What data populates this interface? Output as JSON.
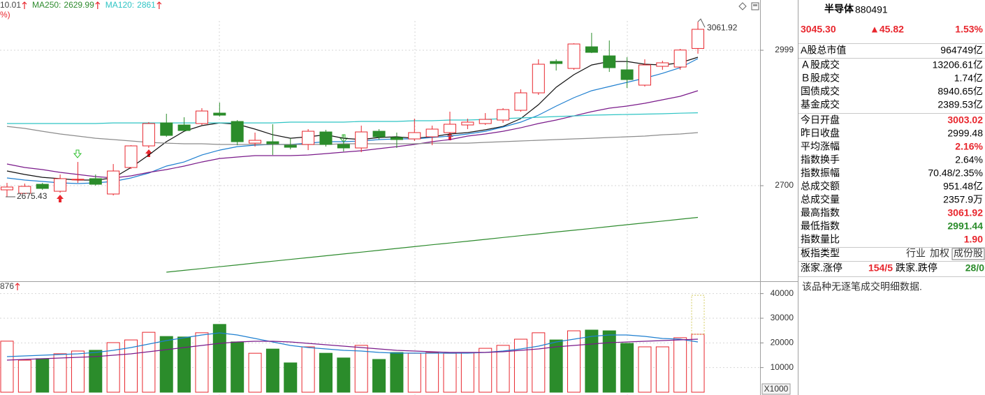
{
  "chart_data": [
    {
      "type": "candlestick",
      "header_text": "10.01",
      "sub_text": "%)",
      "up_color": "#e8262d",
      "down_color": "#2b8c2b",
      "open": [
        2690.8,
        2683.1,
        2703.1,
        2687.7,
        2713.9,
        2715.5,
        2681.6,
        2740.1,
        2787.9,
        2838.7,
        2834.1,
        2837.2,
        2860.3,
        2841.8,
        2794.0,
        2797.1,
        2789.4,
        2791.0,
        2818.7,
        2791.0,
        2783.3,
        2820.2,
        2806.4,
        2803.3,
        2807.9,
        2817.2,
        2834.1,
        2837.2,
        2844.9,
        2866.5,
        2905.0,
        2974.3,
        2958.9,
        3006.7,
        2986.7,
        2955.9,
        2922.0,
        2963.6,
        2962.0,
        3003.02
      ],
      "close": [
        2697.0,
        2698.5,
        2693.9,
        2715.5,
        2714.2,
        2703.1,
        2732.4,
        2787.9,
        2837.2,
        2811.0,
        2821.8,
        2864.9,
        2855.7,
        2797.1,
        2800.2,
        2792.5,
        2784.8,
        2820.2,
        2791.0,
        2783.3,
        2818.7,
        2807.9,
        2801.8,
        2817.2,
        2824.9,
        2835.7,
        2840.3,
        2846.4,
        2868.0,
        2905.0,
        2968.2,
        2969.7,
        3012.9,
        2994.4,
        2960.5,
        2934.3,
        2966.6,
        2971.3,
        2999.48,
        3045.3
      ],
      "high": [
        2706.2,
        2704.7,
        2706.2,
        2724.7,
        2752.4,
        2724.7,
        2747.8,
        2789.4,
        2840.3,
        2858.8,
        2851.1,
        2871.1,
        2883.4,
        2844.9,
        2817.2,
        2835.7,
        2804.8,
        2824.9,
        2823.3,
        2812.5,
        2832.6,
        2824.9,
        2817.2,
        2848.0,
        2832.6,
        2863.4,
        2848.0,
        2860.3,
        2871.1,
        2912.7,
        2979.0,
        2979.0,
        3014.4,
        3037.5,
        3020.6,
        2983.6,
        2979.0,
        2975.9,
        3002.1,
        3061.92
      ],
      "low": [
        2675.43,
        2681.5,
        2690.8,
        2684.6,
        2706.2,
        2700.1,
        2678.5,
        2737.0,
        2783.3,
        2807.9,
        2820.2,
        2834.1,
        2852.6,
        2789.4,
        2786.3,
        2767.8,
        2780.2,
        2778.6,
        2786.3,
        2775.6,
        2774.0,
        2801.8,
        2783.3,
        2798.7,
        2789.4,
        2804.8,
        2824.9,
        2834.1,
        2838.7,
        2863.4,
        2900.4,
        2954.3,
        2955.9,
        2992.8,
        2951.2,
        2915.8,
        2918.9,
        2955.9,
        2955.9,
        2991.44
      ],
      "series": [
        {
          "color": "#111111",
          "values": [
            2732.4,
            2724.7,
            2718.5,
            2715.5,
            2712.4,
            2712.4,
            2717.0,
            2740.1,
            2767.8,
            2797.1,
            2820.2,
            2832.6,
            2838.7,
            2835.7,
            2824.9,
            2812.5,
            2804.8,
            2807.9,
            2812.5,
            2804.8,
            2801.8,
            2806.4,
            2807.9,
            2804.8,
            2807.9,
            2814.1,
            2817.2,
            2823.3,
            2831.0,
            2848.0,
            2878.8,
            2917.3,
            2945.1,
            2966.6,
            2974.3,
            2974.3,
            2968.2,
            2966.6,
            2971.3,
            2983.6
          ]
        },
        {
          "color": "#1e7fd0",
          "values": [
            2717.0,
            2712.4,
            2709.3,
            2706.2,
            2704.7,
            2706.2,
            2709.3,
            2717.0,
            2727.8,
            2743.2,
            2752.4,
            2767.8,
            2778.6,
            2786.3,
            2789.4,
            2791.0,
            2791.0,
            2794.0,
            2797.1,
            2797.1,
            2798.7,
            2801.8,
            2803.3,
            2803.3,
            2806.4,
            2809.5,
            2814.1,
            2820.2,
            2829.5,
            2840.3,
            2855.7,
            2875.7,
            2894.2,
            2909.6,
            2918.9,
            2928.1,
            2937.4,
            2948.1,
            2960.5,
            2980.5
          ]
        },
        {
          "color": "#7a1a8a",
          "values": [
            2747.8,
            2740.1,
            2735.5,
            2729.3,
            2724.7,
            2720.1,
            2717.0,
            2721.6,
            2729.3,
            2735.5,
            2743.2,
            2752.4,
            2760.1,
            2763.2,
            2766.3,
            2766.3,
            2766.3,
            2767.8,
            2770.9,
            2774.0,
            2777.1,
            2781.7,
            2786.3,
            2791.0,
            2797.1,
            2801.8,
            2809.5,
            2814.1,
            2820.2,
            2827.9,
            2837.2,
            2844.9,
            2854.1,
            2863.4,
            2871.1,
            2875.7,
            2881.9,
            2889.6,
            2897.3,
            2909.6
          ]
        },
        {
          "color": "#8c8c8c",
          "values": [
            2831.0,
            2826.4,
            2820.2,
            2814.1,
            2809.5,
            2804.8,
            2801.8,
            2798.7,
            2795.6,
            2794.0,
            2792.5,
            2792.5,
            2791.0,
            2791.0,
            2791.0,
            2791.0,
            2791.0,
            2791.0,
            2791.0,
            2792.5,
            2792.5,
            2792.5,
            2792.5,
            2792.5,
            2794.0,
            2794.0,
            2794.0,
            2795.6,
            2797.1,
            2798.7,
            2800.2,
            2801.8,
            2803.3,
            2804.8,
            2806.4,
            2807.9,
            2809.5,
            2812.5,
            2814.1,
            2817.2
          ]
        },
        {
          "name": "MA250:",
          "color": "#2e8b2e",
          "values": [
            null,
            null,
            null,
            null,
            null,
            null,
            null,
            null,
            null,
            2509.0,
            2513.0,
            2517.1,
            2521.1,
            2525.1,
            2529.2,
            2533.2,
            2537.2,
            2541.2,
            2545.3,
            2549.3,
            2553.3,
            2557.4,
            2561.4,
            2565.4,
            2569.5,
            2573.5,
            2577.5,
            2581.5,
            2585.6,
            2589.6,
            2593.6,
            2597.7,
            2601.7,
            2605.7,
            2609.8,
            2613.8,
            2617.8,
            2621.8,
            2625.9,
            2629.99
          ]
        },
        {
          "name": "MA120:",
          "color": "#2ec4c4",
          "values": [
            2837.2,
            2837.2,
            2837.2,
            2837.2,
            2837.2,
            2837.2,
            2838.7,
            2838.7,
            2838.7,
            2838.7,
            2838.7,
            2838.7,
            2838.7,
            2838.7,
            2838.7,
            2838.7,
            2840.3,
            2840.3,
            2840.3,
            2840.3,
            2841.8,
            2841.8,
            2841.8,
            2843.4,
            2843.4,
            2844.9,
            2844.9,
            2846.4,
            2848.0,
            2849.5,
            2851.1,
            2852.6,
            2854.1,
            2855.7,
            2856.5,
            2857.3,
            2858.1,
            2858.8,
            2860.0,
            2861.0
          ]
        }
      ],
      "ylim": [
        2493.6,
        3110.0
      ],
      "yticks": [
        2700,
        2999
      ],
      "grid": true
    },
    {
      "type": "bar",
      "header_text": "876",
      "unit_label": "X1000",
      "projected_value": 39300,
      "values": [
        20700,
        13000,
        13600,
        15600,
        16700,
        17000,
        20100,
        21200,
        24300,
        22600,
        22400,
        24100,
        27500,
        20400,
        15800,
        17500,
        11900,
        18400,
        15800,
        13900,
        19000,
        13300,
        16100,
        15800,
        16100,
        15800,
        16100,
        17800,
        19000,
        21500,
        24100,
        21200,
        24900,
        25200,
        24900,
        19800,
        18400,
        18400,
        22100,
        23500
      ],
      "series": [
        {
          "color": "#1e7fd0",
          "values": [
            14433,
            14716,
            14999,
            15282,
            15565,
            16131,
            16980,
            18112,
            19527,
            20942,
            22074,
            23206,
            24055,
            23206,
            21791,
            20376,
            18961,
            18112,
            17546,
            16980,
            16697,
            16131,
            15848,
            15848,
            15848,
            15848,
            15848,
            16131,
            16697,
            17546,
            18678,
            20376,
            21508,
            22640,
            23206,
            23206,
            22640,
            21791,
            21508,
            20376
          ]
        },
        {
          "color": "#7a1a8a",
          "values": [
            13018,
            13301,
            13584,
            13867,
            14150,
            14433,
            14999,
            15565,
            16414,
            17263,
            18112,
            18961,
            19810,
            20376,
            20659,
            20659,
            20376,
            19810,
            19244,
            18678,
            18112,
            17546,
            16980,
            16697,
            16414,
            16131,
            16131,
            16131,
            16414,
            16980,
            17546,
            18395,
            18961,
            19527,
            20093,
            20376,
            20659,
            20942,
            21225,
            21508
          ]
        }
      ],
      "ylim": [
        0,
        44430
      ],
      "yticks": [
        10000,
        20000,
        30000,
        40000
      ],
      "grid": true
    }
  ],
  "info": {
    "name": "半导体",
    "code": "880491",
    "price": "3045.30",
    "change": "▲45.82",
    "change_pct": "1.53%",
    "price_color": "#e8262d",
    "rows": [
      {
        "label": "A股总市值",
        "value": "964749亿",
        "color": "#000000"
      },
      {
        "label": "Ａ股成交",
        "value": "13206.61亿",
        "color": "#000000"
      },
      {
        "label": "Ｂ股成交",
        "value": "1.74亿",
        "color": "#000000"
      },
      {
        "label": "国债成交",
        "value": "8940.65亿",
        "color": "#000000"
      },
      {
        "label": "基金成交",
        "value": "2389.53亿",
        "color": "#000000"
      },
      {
        "label": "今日开盘",
        "value": "3003.02",
        "color": "#e8262d"
      },
      {
        "label": "昨日收盘",
        "value": "2999.48",
        "color": "#000000"
      },
      {
        "label": "平均涨幅",
        "value": "2.16%",
        "color": "#e8262d"
      },
      {
        "label": "指数换手",
        "value": "2.64%",
        "color": "#000000"
      },
      {
        "label": "指数振幅",
        "value": "70.48/2.35%",
        "color": "#000000"
      },
      {
        "label": "总成交额",
        "value": "951.48亿",
        "color": "#000000"
      },
      {
        "label": "总成交量",
        "value": "2357.9万",
        "color": "#000000"
      },
      {
        "label": "最高指数",
        "value": "3061.92",
        "color": "#e8262d"
      },
      {
        "label": "最低指数",
        "value": "2991.44",
        "color": "#2b8c2b"
      },
      {
        "label": "指数量比",
        "value": "1.90",
        "color": "#e8262d"
      }
    ],
    "type_row": {
      "label": "板指类型",
      "options": [
        "行业",
        "加权",
        "成份股"
      ]
    },
    "breadth_row": {
      "up_label": "涨家.涨停",
      "up_value": "154/5",
      "up_color": "#e8262d",
      "down_label": "跌家.跌停",
      "down_value": "28/0",
      "down_color": "#2b8c2b"
    },
    "note": "该品种无逐笔成交明细数据."
  }
}
